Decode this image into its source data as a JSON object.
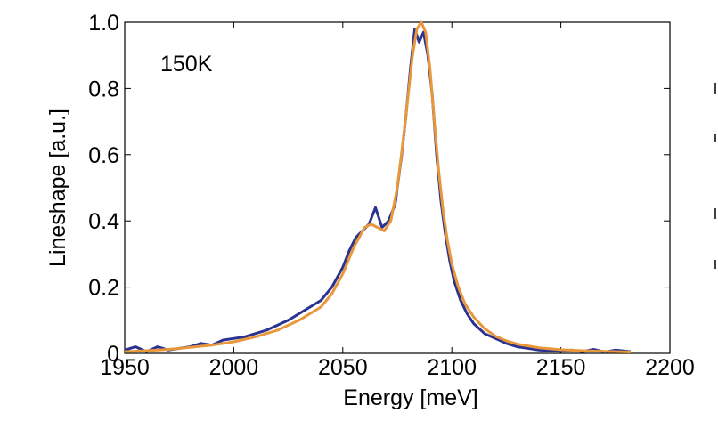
{
  "chart_data": {
    "type": "line",
    "title": "",
    "xlabel": "Energy [meV]",
    "ylabel": "Lineshape [a.u.]",
    "xlim": [
      1950,
      2200
    ],
    "ylim": [
      0,
      1.0
    ],
    "xticks": [
      1950,
      2000,
      2050,
      2100,
      2150,
      2200
    ],
    "xtick_labels": [
      "1950",
      "2000",
      "2050",
      "2100",
      "2150",
      "2200"
    ],
    "yticks": [
      0,
      0.2,
      0.4,
      0.6,
      0.8,
      1.0
    ],
    "ytick_labels": [
      "0",
      "0.2",
      "0.4",
      "0.6",
      "0.8",
      "1.0"
    ],
    "annotation": "150K",
    "grid": false,
    "series": [
      {
        "color": "#2b3390",
        "x": [
          1950,
          1955,
          1960,
          1965,
          1970,
          1975,
          1980,
          1985,
          1990,
          1995,
          2000,
          2005,
          2010,
          2015,
          2020,
          2025,
          2030,
          2035,
          2040,
          2045,
          2050,
          2053,
          2056,
          2059,
          2062,
          2065,
          2068,
          2071,
          2074,
          2077,
          2079,
          2081,
          2083,
          2085,
          2087,
          2089,
          2091,
          2093,
          2095,
          2097,
          2099,
          2101,
          2104,
          2107,
          2110,
          2115,
          2120,
          2125,
          2130,
          2135,
          2140,
          2145,
          2150,
          2155,
          2160,
          2165,
          2170,
          2175,
          2182
        ],
        "y": [
          0.01,
          0.02,
          0.005,
          0.02,
          0.01,
          0.015,
          0.02,
          0.03,
          0.025,
          0.04,
          0.045,
          0.05,
          0.06,
          0.07,
          0.085,
          0.1,
          0.12,
          0.14,
          0.16,
          0.2,
          0.26,
          0.31,
          0.35,
          0.37,
          0.39,
          0.44,
          0.38,
          0.4,
          0.45,
          0.6,
          0.72,
          0.86,
          0.98,
          0.94,
          0.97,
          0.9,
          0.78,
          0.6,
          0.46,
          0.36,
          0.28,
          0.22,
          0.16,
          0.12,
          0.09,
          0.06,
          0.045,
          0.03,
          0.02,
          0.015,
          0.01,
          0.008,
          0.006,
          0.01,
          0.005,
          0.012,
          0.004,
          0.01,
          0.005
        ]
      },
      {
        "color": "#e8973a",
        "x": [
          1950,
          1960,
          1970,
          1980,
          1990,
          2000,
          2010,
          2020,
          2030,
          2040,
          2045,
          2050,
          2055,
          2060,
          2063,
          2066,
          2069,
          2072,
          2075,
          2078,
          2080,
          2082,
          2084,
          2086,
          2088,
          2090,
          2092,
          2094,
          2096,
          2098,
          2100,
          2103,
          2106,
          2110,
          2115,
          2120,
          2125,
          2130,
          2140,
          2150,
          2160,
          2170,
          2182
        ],
        "y": [
          0.005,
          0.008,
          0.012,
          0.018,
          0.025,
          0.035,
          0.05,
          0.07,
          0.1,
          0.14,
          0.18,
          0.24,
          0.32,
          0.38,
          0.39,
          0.38,
          0.37,
          0.4,
          0.5,
          0.66,
          0.78,
          0.9,
          0.98,
          1.0,
          0.97,
          0.86,
          0.7,
          0.55,
          0.43,
          0.34,
          0.27,
          0.2,
          0.15,
          0.11,
          0.075,
          0.052,
          0.038,
          0.028,
          0.017,
          0.011,
          0.008,
          0.006,
          0.004
        ]
      }
    ]
  }
}
